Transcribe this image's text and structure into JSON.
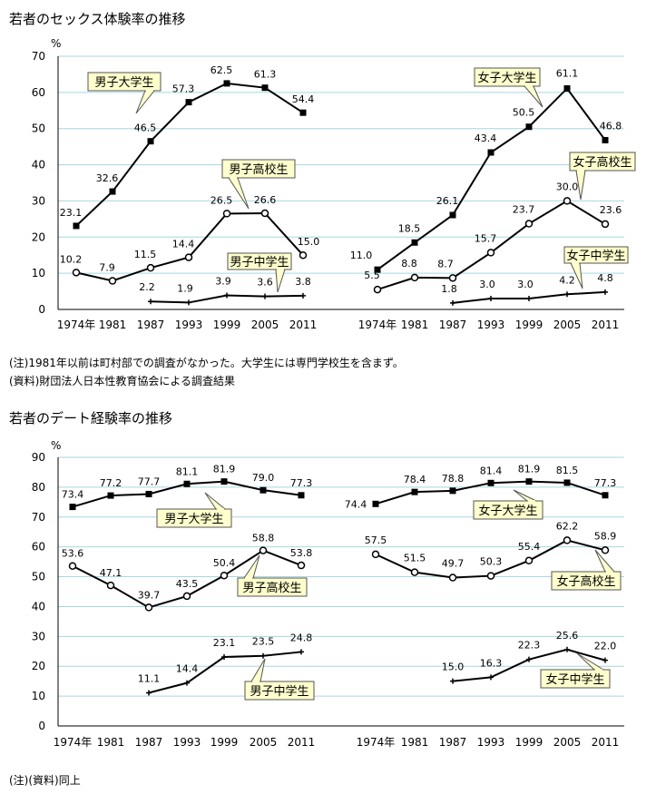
{
  "chart_data": [
    {
      "type": "line",
      "title": "若者のセックス体験率の推移",
      "ylabel": "%",
      "ylim": [
        0,
        70
      ],
      "yticks": [
        0,
        10,
        20,
        30,
        40,
        50,
        60,
        70
      ],
      "grid": true,
      "panels": [
        {
          "group": "male",
          "x_ticks": [
            "1974年",
            "1981",
            "1987",
            "1993",
            "1999",
            "2005",
            "2011"
          ],
          "series": [
            {
              "name": "男子大学生",
              "marker": "square",
              "values": [
                23.1,
                32.6,
                46.5,
                57.3,
                62.5,
                61.3,
                54.4
              ]
            },
            {
              "name": "男子高校生",
              "marker": "circle",
              "values": [
                10.2,
                7.9,
                11.5,
                14.4,
                26.5,
                26.6,
                15.0
              ]
            },
            {
              "name": "男子中学生",
              "marker": "plus",
              "values": [
                null,
                null,
                2.2,
                1.9,
                3.9,
                3.6,
                3.8
              ]
            }
          ]
        },
        {
          "group": "female",
          "x_ticks": [
            "1974年",
            "1981",
            "1987",
            "1993",
            "1999",
            "2005",
            "2011"
          ],
          "series": [
            {
              "name": "女子大学生",
              "marker": "square",
              "values": [
                11.0,
                18.5,
                26.1,
                43.4,
                50.5,
                61.1,
                46.8
              ]
            },
            {
              "name": "女子高校生",
              "marker": "circle",
              "values": [
                5.5,
                8.8,
                8.7,
                15.7,
                23.7,
                30.0,
                23.6
              ]
            },
            {
              "name": "女子中学生",
              "marker": "plus",
              "values": [
                null,
                null,
                1.8,
                3.0,
                3.0,
                4.2,
                4.8
              ]
            }
          ]
        }
      ],
      "annotations": [
        "(注)1981年以前は町村部での調査がなかった。大学生には専門学校生を含まず。",
        "(資料)財団法人日本性教育協会による調査結果"
      ]
    },
    {
      "type": "line",
      "title": "若者のデート経験率の推移",
      "ylabel": "%",
      "ylim": [
        0,
        90
      ],
      "yticks": [
        0,
        10,
        20,
        30,
        40,
        50,
        60,
        70,
        80,
        90
      ],
      "grid": true,
      "panels": [
        {
          "group": "male",
          "x_ticks": [
            "1974年",
            "1981",
            "1987",
            "1993",
            "1999",
            "2005",
            "2011"
          ],
          "series": [
            {
              "name": "男子大学生",
              "marker": "square",
              "values": [
                73.4,
                77.2,
                77.7,
                81.1,
                81.9,
                79.0,
                77.3
              ]
            },
            {
              "name": "男子高校生",
              "marker": "circle",
              "values": [
                53.6,
                47.1,
                39.7,
                43.5,
                50.4,
                58.8,
                53.8
              ]
            },
            {
              "name": "男子中学生",
              "marker": "plus",
              "values": [
                null,
                null,
                11.1,
                14.4,
                23.1,
                23.5,
                24.8
              ]
            }
          ]
        },
        {
          "group": "female",
          "x_ticks": [
            "1974年",
            "1981",
            "1987",
            "1993",
            "1999",
            "2005",
            "2011"
          ],
          "series": [
            {
              "name": "女子大学生",
              "marker": "square",
              "values": [
                74.4,
                78.4,
                78.8,
                81.4,
                81.9,
                81.5,
                77.3
              ]
            },
            {
              "name": "女子高校生",
              "marker": "circle",
              "values": [
                57.5,
                51.5,
                49.7,
                50.3,
                55.4,
                62.2,
                58.9
              ]
            },
            {
              "name": "女子中学生",
              "marker": "plus",
              "values": [
                null,
                null,
                15.0,
                16.3,
                22.3,
                25.6,
                22.0
              ]
            }
          ]
        }
      ],
      "annotations": [
        "(注)(資料)同上"
      ]
    }
  ],
  "colors": {
    "grid": "#a9d6e3",
    "line": "#000000",
    "callout_fill": "#ffffcc",
    "callout_border": "#555555"
  }
}
